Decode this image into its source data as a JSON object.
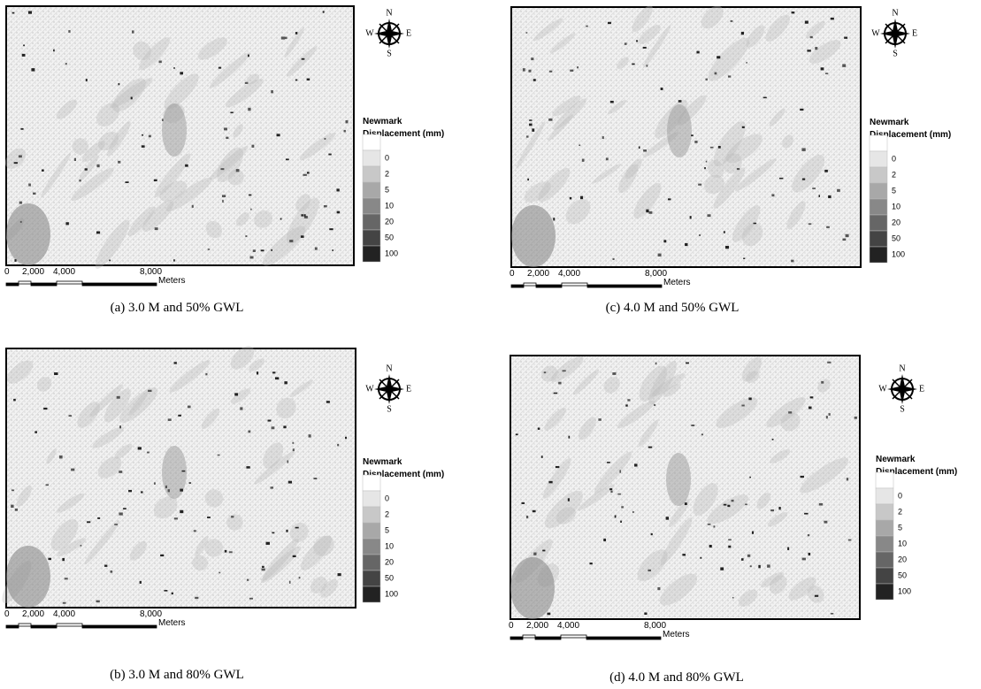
{
  "panels": [
    {
      "caption": "(a) 3.0 M and 50% GWL",
      "compass": {
        "n": "N",
        "s": "S",
        "w": "W",
        "e": "E"
      },
      "legend": {
        "title": [
          "Newmark",
          "Displacement (mm)"
        ],
        "labels": [
          0,
          2,
          5,
          10,
          20,
          50,
          100
        ]
      },
      "scale": {
        "labels": [
          "0",
          "2,000",
          "4,000",
          "8,000"
        ],
        "unit": "Meters"
      }
    },
    {
      "caption": "(c) 4.0 M and 50% GWL",
      "compass": {
        "n": "N",
        "s": "S",
        "w": "W",
        "e": "E"
      },
      "legend": {
        "title": [
          "Newmark",
          "Displacement (mm)"
        ],
        "labels": [
          0,
          2,
          5,
          10,
          20,
          50,
          100
        ]
      },
      "scale": {
        "labels": [
          "0",
          "2,000",
          "4,000",
          "8,000"
        ],
        "unit": "Meters"
      }
    },
    {
      "caption": "(b) 3.0 M and 80% GWL",
      "compass": {
        "n": "N",
        "s": "S",
        "w": "W",
        "e": "E"
      },
      "legend": {
        "title": [
          "Newmark",
          "Displacement (mm)"
        ],
        "labels": [
          0,
          2,
          5,
          10,
          20,
          50,
          100
        ]
      },
      "scale": {
        "labels": [
          "0",
          "2,000",
          "4,000",
          "8,000"
        ],
        "unit": "Meters"
      }
    },
    {
      "caption": "(d) 4.0 M and 80% GWL",
      "compass": {
        "n": "N",
        "s": "S",
        "w": "W",
        "e": "E"
      },
      "legend": {
        "title": [
          "Newmark",
          "Displacement (mm)"
        ],
        "labels": [
          0,
          2,
          5,
          10,
          20,
          50,
          100
        ]
      },
      "scale": {
        "labels": [
          "0",
          "2,000",
          "4,000",
          "8,000"
        ],
        "unit": "Meters"
      }
    }
  ]
}
